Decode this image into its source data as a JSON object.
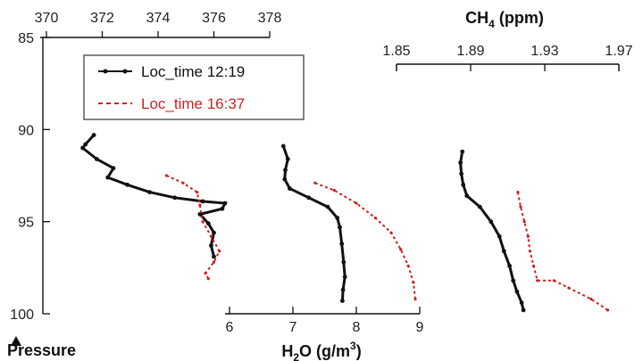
{
  "chart_data": {
    "type": "line",
    "axes": {
      "co2": {
        "title": "",
        "ticks": [
          "370",
          "372",
          "374",
          "376",
          "378"
        ],
        "range": [
          370,
          378.5
        ]
      },
      "ch4": {
        "title_main": "CH",
        "title_sub": "4",
        "title_unit": " (ppm)",
        "ticks": [
          "1.85",
          "1.89",
          "1.93",
          "1.97"
        ],
        "range": [
          1.85,
          1.97
        ]
      },
      "h2o": {
        "title_main": "H",
        "title_sub": "2",
        "title_mid": "O (g/m",
        "title_sup": "3",
        "title_end": ")",
        "ticks": [
          "6",
          "7",
          "8",
          "9"
        ],
        "range": [
          6,
          9
        ]
      },
      "pressure": {
        "title": "Pressure",
        "ticks": [
          "85",
          "90",
          "95",
          "100"
        ],
        "range": [
          85,
          100
        ]
      }
    },
    "legend": {
      "placement": "upper-left",
      "entries": [
        "Loc_time 12:19",
        "Loc_time 16:37"
      ]
    },
    "series": [
      {
        "name": "Loc_time 12:19",
        "color": "#111111",
        "style": "solid-with-markers",
        "profiles": {
          "co2": [
            [
              371.7,
              90.3
            ],
            [
              371.4,
              90.8
            ],
            [
              371.3,
              91.0
            ],
            [
              371.8,
              91.6
            ],
            [
              372.4,
              92.1
            ],
            [
              372.2,
              92.6
            ],
            [
              372.9,
              93.0
            ],
            [
              373.7,
              93.4
            ],
            [
              374.6,
              93.7
            ],
            [
              375.6,
              93.9
            ],
            [
              376.4,
              94.0
            ],
            [
              376.3,
              94.3
            ],
            [
              375.5,
              94.6
            ],
            [
              375.8,
              95.1
            ],
            [
              376.0,
              95.6
            ],
            [
              375.9,
              96.3
            ],
            [
              376.0,
              96.9
            ]
          ],
          "h2o": [
            [
              6.85,
              90.9
            ],
            [
              6.92,
              91.6
            ],
            [
              6.88,
              92.2
            ],
            [
              6.87,
              92.7
            ],
            [
              6.95,
              93.2
            ],
            [
              7.25,
              93.7
            ],
            [
              7.55,
              94.2
            ],
            [
              7.7,
              94.8
            ],
            [
              7.74,
              95.3
            ],
            [
              7.77,
              96.2
            ],
            [
              7.8,
              97.2
            ],
            [
              7.82,
              98.0
            ],
            [
              7.79,
              98.7
            ],
            [
              7.78,
              99.3
            ]
          ],
          "ch4": [
            [
              1.8855,
              91.2
            ],
            [
              1.8845,
              91.8
            ],
            [
              1.885,
              92.4
            ],
            [
              1.886,
              93.0
            ],
            [
              1.888,
              93.6
            ],
            [
              1.895,
              94.2
            ],
            [
              1.901,
              95.0
            ],
            [
              1.9055,
              95.8
            ],
            [
              1.908,
              96.6
            ],
            [
              1.911,
              97.4
            ],
            [
              1.913,
              98.2
            ],
            [
              1.915,
              98.8
            ],
            [
              1.9175,
              99.4
            ],
            [
              1.9185,
              99.8
            ]
          ]
        }
      },
      {
        "name": "Loc_time 16:37",
        "color": "#cc2222",
        "style": "dashed",
        "profiles": {
          "co2": [
            [
              374.3,
              92.5
            ],
            [
              374.9,
              92.9
            ],
            [
              375.4,
              93.4
            ],
            [
              375.5,
              94.1
            ],
            [
              375.6,
              95.0
            ],
            [
              375.9,
              95.8
            ],
            [
              376.2,
              96.6
            ],
            [
              376.0,
              97.2
            ],
            [
              375.7,
              97.8
            ],
            [
              375.8,
              98.1
            ]
          ],
          "h2o": [
            [
              7.35,
              92.9
            ],
            [
              7.65,
              93.3
            ],
            [
              8.0,
              94.0
            ],
            [
              8.3,
              94.8
            ],
            [
              8.55,
              95.6
            ],
            [
              8.7,
              96.5
            ],
            [
              8.82,
              97.4
            ],
            [
              8.9,
              98.3
            ],
            [
              8.93,
              99.2
            ]
          ],
          "ch4": [
            [
              1.9155,
              93.4
            ],
            [
              1.917,
              94.2
            ],
            [
              1.919,
              95.0
            ],
            [
              1.921,
              95.8
            ],
            [
              1.922,
              96.6
            ],
            [
              1.924,
              97.4
            ],
            [
              1.926,
              98.2
            ],
            [
              1.935,
              98.2
            ],
            [
              1.943,
              98.6
            ],
            [
              1.955,
              99.2
            ],
            [
              1.964,
              99.8
            ]
          ]
        }
      }
    ]
  }
}
